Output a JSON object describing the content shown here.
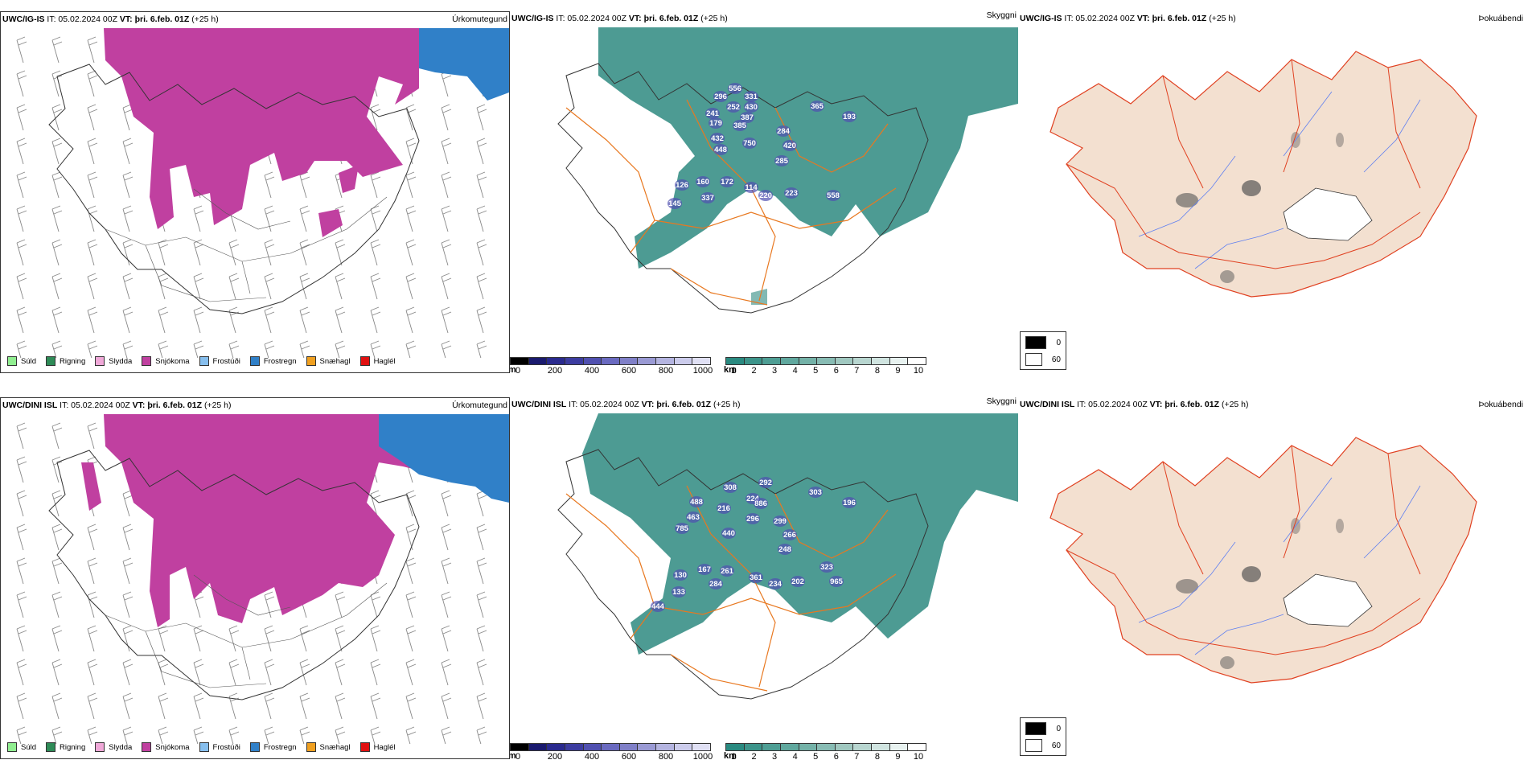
{
  "rows": [
    {
      "model": "UWC/IG-IS",
      "it": "IT: 05.02.2024 00Z",
      "vt_label": "VT:",
      "vt_value": "þri. 6.feb. 01Z",
      "lead": "(+25 h)",
      "precip_title": "Úrkomutegund",
      "ceiling_title": "Skyggni",
      "fog_title": "Þokuábendi",
      "ceiling_values": [
        "556",
        "296",
        "331",
        "252",
        "430",
        "241",
        "387",
        "179",
        "385",
        "432",
        "284",
        "448",
        "750",
        "420",
        "365",
        "193",
        "285",
        "126",
        "160",
        "172",
        "114",
        "220",
        "223",
        "145",
        "337",
        "558"
      ]
    },
    {
      "model": "UWC/DINI ISL",
      "it": "IT: 05.02.2024 00Z",
      "vt_label": "VT:",
      "vt_value": "þri. 6.feb. 01Z",
      "lead": "(+25 h)",
      "precip_title": "Úrkomutegund",
      "ceiling_title": "Skyggni",
      "fog_title": "Þokuábendi",
      "ceiling_values": [
        "292",
        "308",
        "488",
        "224",
        "216",
        "886",
        "463",
        "785",
        "296",
        "299",
        "303",
        "196",
        "440",
        "266",
        "248",
        "323",
        "167",
        "130",
        "261",
        "361",
        "234",
        "202",
        "965",
        "284",
        "133",
        "444"
      ]
    }
  ],
  "precip_legend": [
    {
      "label": "Súld",
      "color": "#90ee90"
    },
    {
      "label": "Rigning",
      "color": "#2e8b57"
    },
    {
      "label": "Slydda",
      "color": "#f0a8d8"
    },
    {
      "label": "Snjókoma",
      "color": "#c040a0"
    },
    {
      "label": "Frostúði",
      "color": "#87bfee"
    },
    {
      "label": "Frostregn",
      "color": "#3080c8"
    },
    {
      "label": "Snæhagl",
      "color": "#f0a020"
    },
    {
      "label": "Haglél",
      "color": "#e01010"
    }
  ],
  "ceiling_bar": {
    "unit": "m",
    "ticks": [
      "0",
      "200",
      "400",
      "600",
      "800",
      "1000"
    ],
    "colors": [
      "#000000",
      "#1a1a6e",
      "#2a2a8e",
      "#3c3ca0",
      "#5050b0",
      "#6a6ac0",
      "#8080c8",
      "#9a9ad4",
      "#b4b4e0",
      "#ccccec",
      "#e0e0f4"
    ]
  },
  "visibility_bar": {
    "unit": "km",
    "ticks": [
      "1",
      "2",
      "3",
      "4",
      "5",
      "6",
      "7",
      "8",
      "9",
      "10"
    ],
    "colors": [
      "#2a8a80",
      "#3c948a",
      "#4e9e94",
      "#60a89e",
      "#74b2a8",
      "#88bcb4",
      "#a0c8c0",
      "#b8d6d0",
      "#d0e4e0",
      "#e8f2f0",
      "#ffffff"
    ]
  },
  "fog_legend": [
    {
      "label": "0",
      "color": "#000000"
    },
    {
      "label": "60",
      "color": "#ffffff"
    }
  ],
  "colors": {
    "snow": "#c040a0",
    "freezing_rain": "#3080c8",
    "visibility": "#2e8a80",
    "ceiling": "#5050b0",
    "land_fog": "#f3e0d0",
    "roads": "#e87820",
    "red_roads": "#e04020",
    "rivers": "#6080f0"
  },
  "icons": [
    "wind-barb-icon"
  ]
}
